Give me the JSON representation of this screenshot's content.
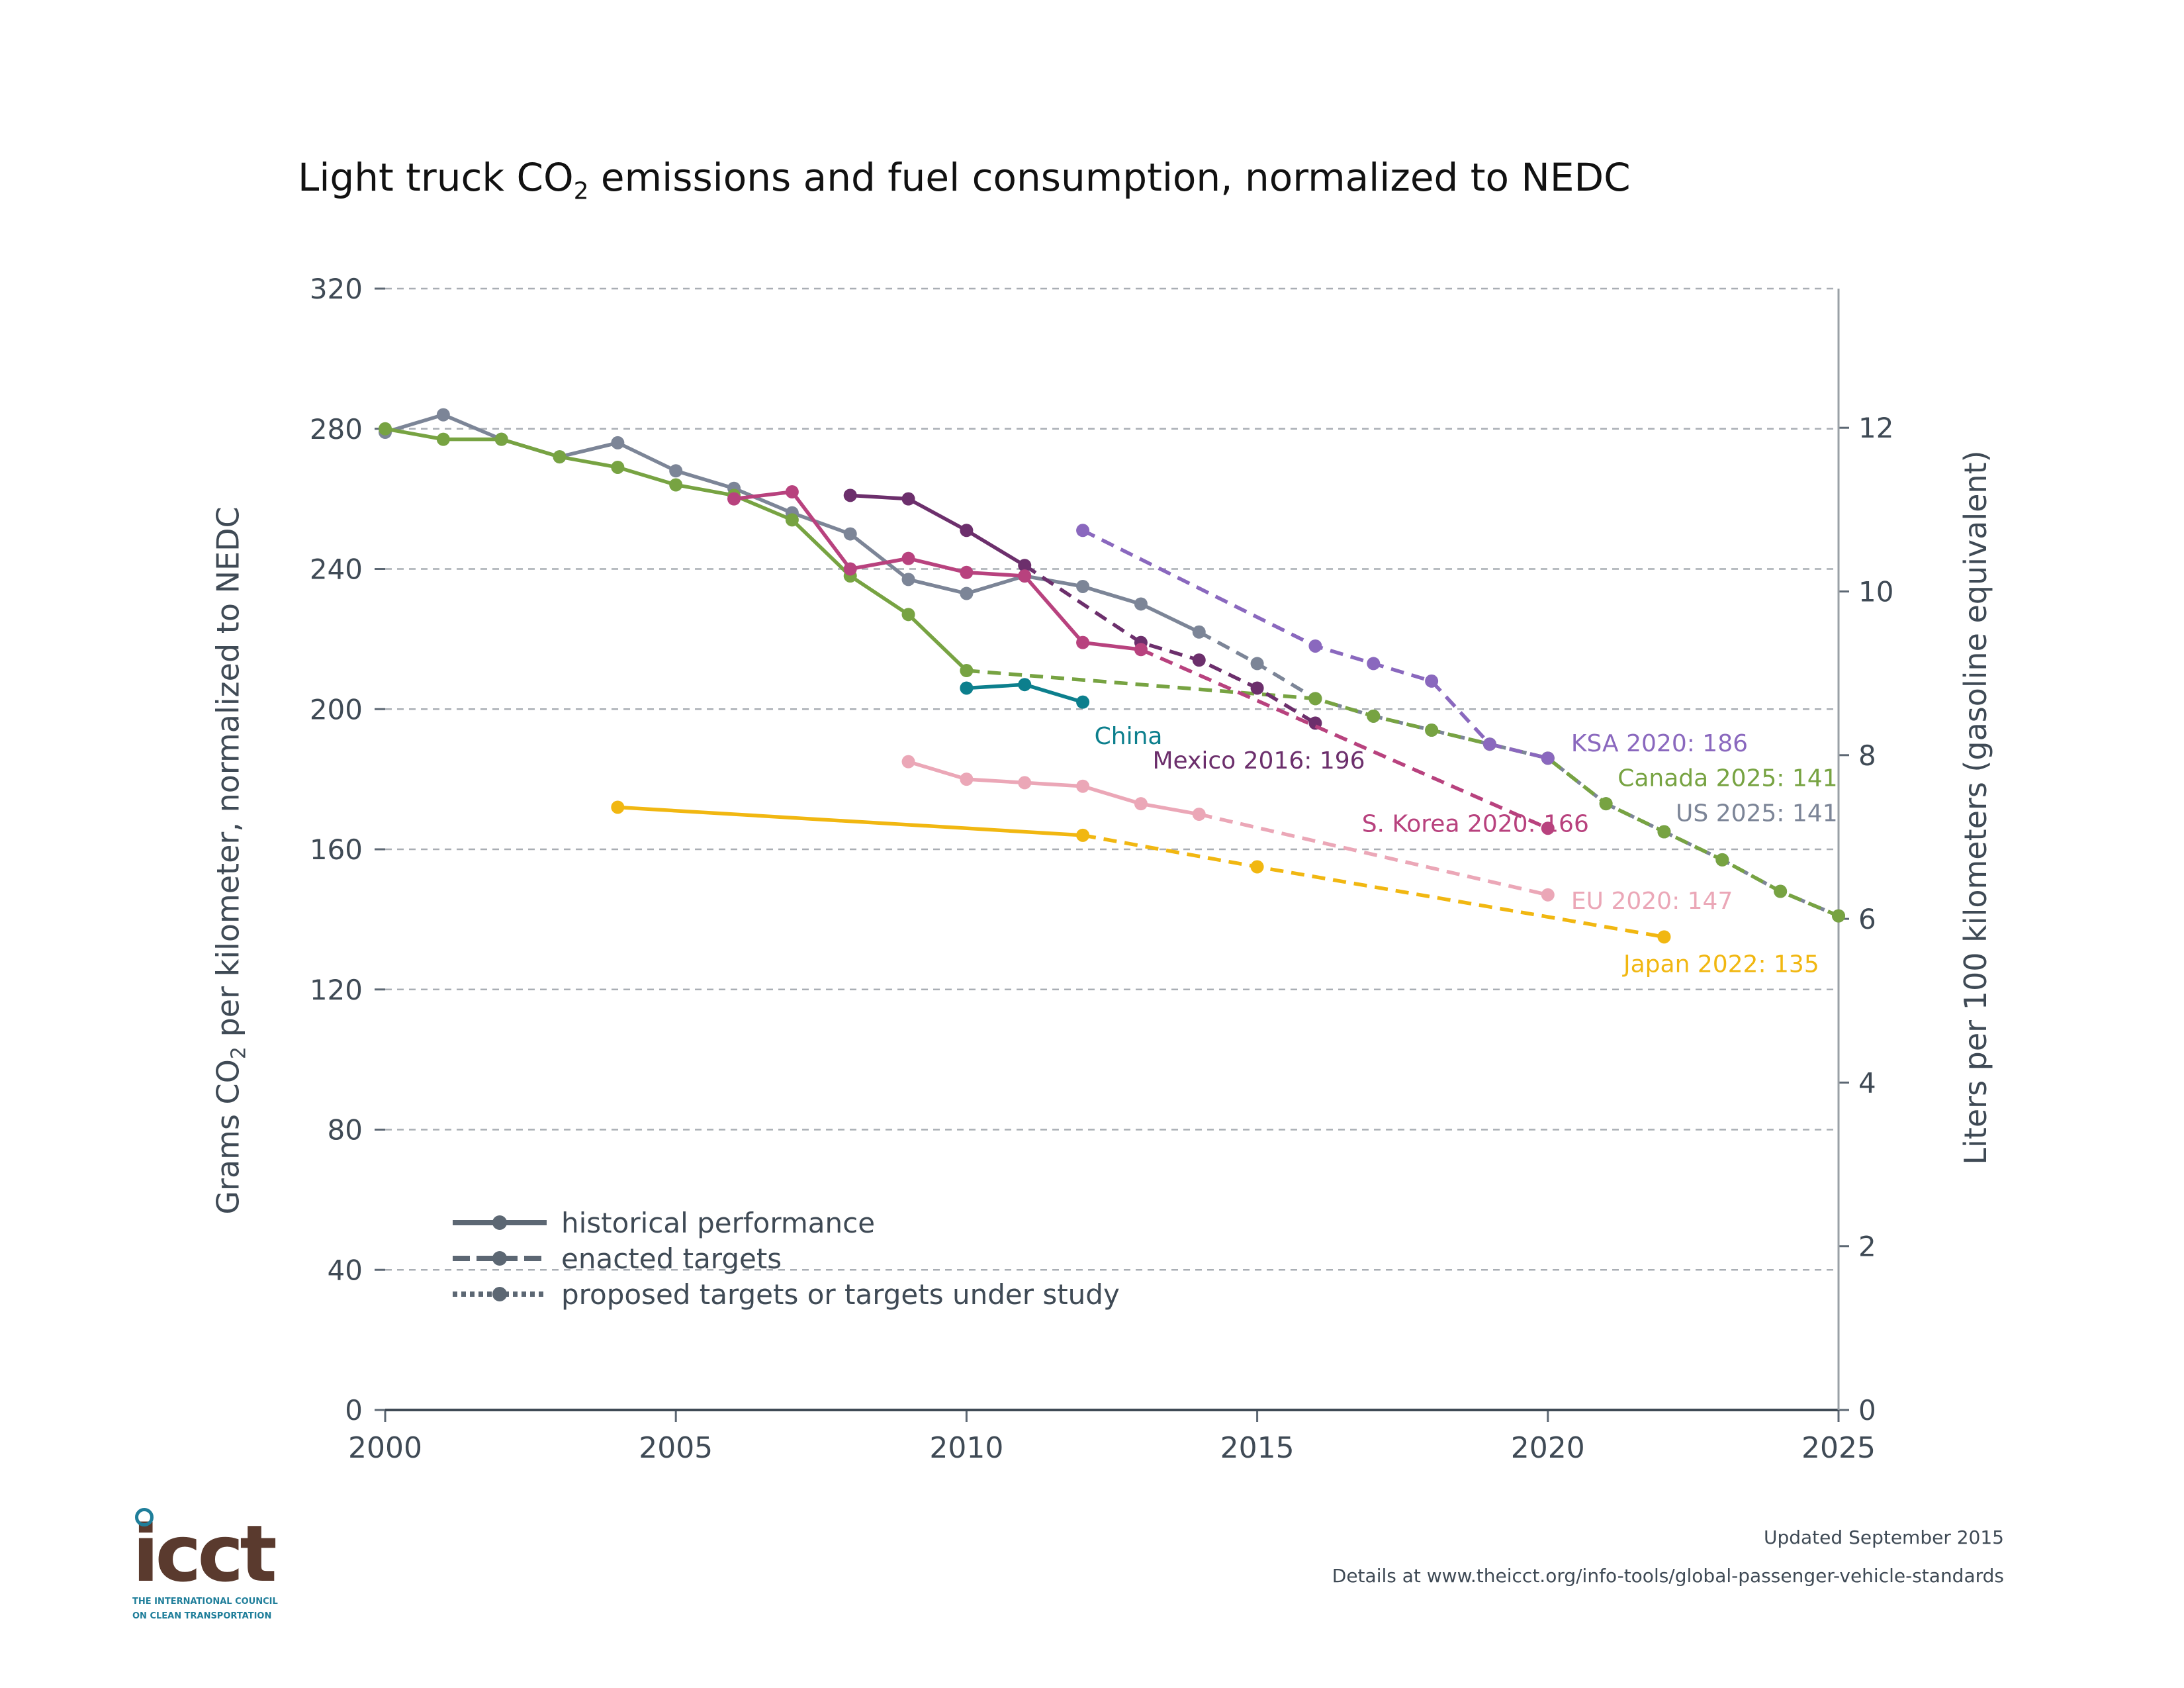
{
  "title_main": "Light truck CO",
  "title_sub": "2",
  "title_rest": " emissions and fuel consumption, normalized to NEDC",
  "ylabel_left_a": "Grams CO",
  "ylabel_left_sub": "2",
  "ylabel_left_b": " per kilometer, normalized to NEDC",
  "ylabel_right": "Liters per 100 kilometers (gasoline equivalent)",
  "legend": {
    "historical": "historical performance",
    "enacted": "enacted targets",
    "proposed": "proposed targets or targets under study"
  },
  "footer": {
    "updated": "Updated September 2015",
    "details": "Details at www.theicct.org/info-tools/global-passenger-vehicle-standards"
  },
  "logo": {
    "word": "icct",
    "line1": "THE INTERNATIONAL COUNCIL",
    "line2": "ON CLEAN TRANSPORTATION"
  },
  "chart_data": {
    "type": "line",
    "title": "Light truck CO2 emissions and fuel consumption, normalized to NEDC",
    "xlabel": "",
    "ylabel": "Grams CO2 per kilometer, normalized to NEDC",
    "y2label": "Liters per 100 kilometers (gasoline equivalent)",
    "xlim": [
      2000,
      2025
    ],
    "ylim": [
      0,
      320
    ],
    "y2lim": [
      0,
      13.7
    ],
    "xticks": [
      2000,
      2005,
      2010,
      2015,
      2020,
      2025
    ],
    "yticks": [
      0,
      40,
      80,
      120,
      160,
      200,
      240,
      280,
      320
    ],
    "y2ticks": [
      0,
      2,
      4,
      6,
      8,
      10,
      12
    ],
    "grid": "horizontal dashed",
    "series": [
      {
        "name": "US",
        "color": "#7c8597",
        "label": "US 2025: 141",
        "historical": [
          [
            2000,
            279
          ],
          [
            2001,
            284
          ],
          [
            2002,
            277
          ],
          [
            2003,
            272
          ],
          [
            2004,
            276
          ],
          [
            2005,
            268
          ],
          [
            2006,
            263
          ],
          [
            2007,
            256
          ],
          [
            2008,
            250
          ],
          [
            2009,
            237
          ],
          [
            2010,
            233
          ],
          [
            2011,
            238
          ],
          [
            2012,
            235
          ],
          [
            2013,
            230
          ],
          [
            2014,
            222
          ]
        ],
        "enacted": [
          [
            2014,
            222
          ],
          [
            2015,
            213
          ],
          [
            2016,
            203
          ],
          [
            2017,
            198
          ],
          [
            2018,
            194
          ],
          [
            2019,
            190
          ],
          [
            2020,
            186
          ],
          [
            2021,
            173
          ],
          [
            2022,
            165
          ],
          [
            2023,
            157
          ],
          [
            2024,
            148
          ],
          [
            2025,
            141
          ]
        ]
      },
      {
        "name": "Canada",
        "color": "#77a342",
        "label": "Canada 2025: 141",
        "historical": [
          [
            2000,
            280
          ],
          [
            2001,
            277
          ],
          [
            2002,
            277
          ],
          [
            2003,
            272
          ],
          [
            2004,
            269
          ],
          [
            2005,
            264
          ],
          [
            2006,
            261
          ],
          [
            2007,
            254
          ],
          [
            2008,
            238
          ],
          [
            2009,
            227
          ],
          [
            2010,
            211
          ]
        ],
        "enacted": [
          [
            2010,
            211
          ],
          [
            2016,
            203
          ],
          [
            2017,
            198
          ],
          [
            2018,
            194
          ],
          [
            2019,
            190
          ],
          [
            2020,
            186
          ],
          [
            2021,
            173
          ],
          [
            2022,
            165
          ],
          [
            2023,
            157
          ],
          [
            2024,
            148
          ],
          [
            2025,
            141
          ]
        ]
      },
      {
        "name": "KSA",
        "color": "#8a68be",
        "label": "KSA 2020: 186",
        "historical": [],
        "enacted": [
          [
            2012,
            251
          ],
          [
            2016,
            218
          ],
          [
            2017,
            213
          ],
          [
            2018,
            208
          ],
          [
            2019,
            190
          ],
          [
            2020,
            186
          ]
        ]
      },
      {
        "name": "Mexico",
        "color": "#6c2f6c",
        "label": "Mexico 2016: 196",
        "historical": [
          [
            2008,
            261
          ],
          [
            2009,
            260
          ],
          [
            2010,
            251
          ],
          [
            2011,
            241
          ]
        ],
        "enacted": [
          [
            2011,
            241
          ],
          [
            2013,
            219
          ],
          [
            2014,
            214
          ],
          [
            2015,
            206
          ],
          [
            2016,
            196
          ]
        ]
      },
      {
        "name": "S. Korea",
        "color": "#b8427e",
        "label": "S. Korea 2020: 166",
        "historical": [
          [
            2006,
            260
          ],
          [
            2007,
            262
          ],
          [
            2008,
            240
          ],
          [
            2009,
            243
          ],
          [
            2010,
            239
          ],
          [
            2011,
            238
          ],
          [
            2012,
            219
          ],
          [
            2013,
            217
          ]
        ],
        "enacted": [
          [
            2013,
            217
          ],
          [
            2020,
            166
          ]
        ]
      },
      {
        "name": "China",
        "color": "#0c7f8d",
        "label": "China",
        "historical": [
          [
            2010,
            206
          ],
          [
            2011,
            207
          ],
          [
            2012,
            202
          ]
        ],
        "enacted": []
      },
      {
        "name": "EU",
        "color": "#eba7b7",
        "label": "EU 2020: 147",
        "historical": [
          [
            2009,
            185
          ],
          [
            2010,
            180
          ],
          [
            2011,
            179
          ],
          [
            2012,
            178
          ],
          [
            2013,
            173
          ],
          [
            2014,
            170
          ]
        ],
        "enacted": [
          [
            2014,
            170
          ],
          [
            2020,
            147
          ]
        ]
      },
      {
        "name": "Japan",
        "color": "#f1b711",
        "label": "Japan 2022: 135",
        "historical": [
          [
            2004,
            172
          ],
          [
            2012,
            164
          ]
        ],
        "enacted": [
          [
            2012,
            164
          ],
          [
            2015,
            155
          ],
          [
            2022,
            135
          ]
        ]
      }
    ],
    "annotations": [
      {
        "text": "China",
        "x": 2012.2,
        "y": 190,
        "series": "China"
      },
      {
        "text": "Mexico 2016: 196",
        "x": 2013.2,
        "y": 183,
        "series": "Mexico"
      },
      {
        "text": "S. Korea 2020: 166",
        "x": 2016.8,
        "y": 165,
        "series": "S. Korea"
      },
      {
        "text": "KSA 2020: 186",
        "x": 2020.4,
        "y": 188,
        "series": "KSA"
      },
      {
        "text": "Canada 2025: 141",
        "x": 2021.2,
        "y": 178,
        "series": "Canada"
      },
      {
        "text": "US 2025: 141",
        "x": 2022.2,
        "y": 168,
        "series": "US"
      },
      {
        "text": "EU 2020: 147",
        "x": 2020.4,
        "y": 143,
        "series": "EU"
      },
      {
        "text": "Japan 2022: 135",
        "x": 2021.3,
        "y": 125,
        "series": "Japan"
      }
    ]
  }
}
